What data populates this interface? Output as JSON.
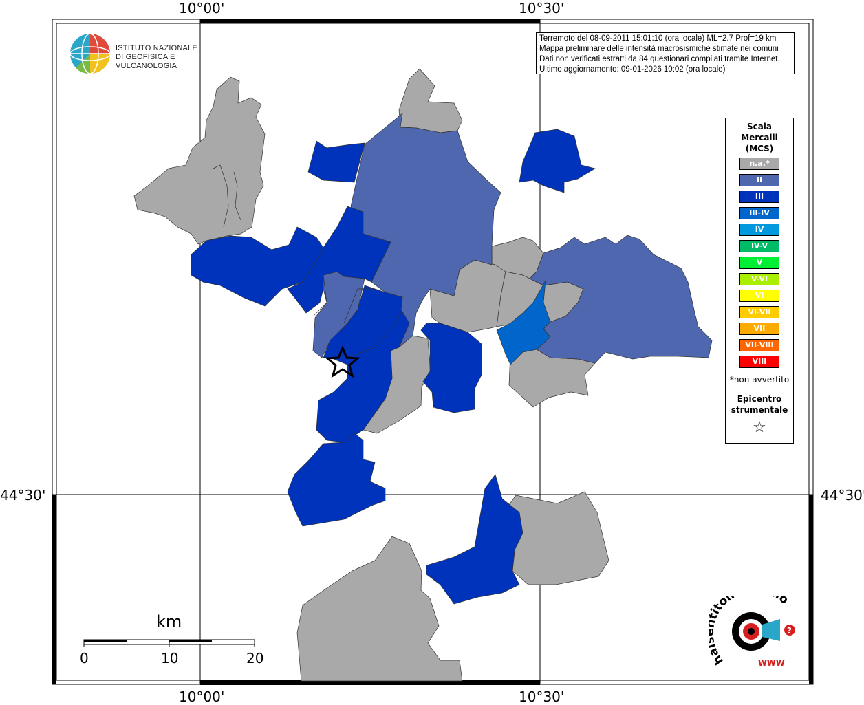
{
  "coords": {
    "lon_left": "10°00'",
    "lon_right": "10°30'",
    "lat": "44°30'"
  },
  "info": {
    "lines": [
      "Terremoto del 08-09-2011 15:01:10 (ora locale) ML=2.7 Prof=19 km",
      "Mappa preliminare delle intensità macrosismiche stimate nei comuni",
      "Dati non verificati estratti da 84 questionari compilati tramite Internet.",
      "Ultimo aggiornamento: 09-01-2026 10:02 (ora locale)"
    ]
  },
  "logo_ingv": {
    "line1": "ISTITUTO NAZIONALE",
    "line2": "DI GEOFISICA E VULCANOLOGIA"
  },
  "legend": {
    "title": [
      "Scala",
      "Mercalli",
      "(MCS)"
    ],
    "items": [
      {
        "label": "n.a.*",
        "color": "#a9a9a9"
      },
      {
        "label": "II",
        "color": "#4f67ae"
      },
      {
        "label": "III",
        "color": "#0033bb"
      },
      {
        "label": "III-IV",
        "color": "#0066cc"
      },
      {
        "label": "IV",
        "color": "#0099dd"
      },
      {
        "label": "IV-V",
        "color": "#00bb66"
      },
      {
        "label": "V",
        "color": "#00ee33"
      },
      {
        "label": "V-VI",
        "color": "#aaee00"
      },
      {
        "label": "VI",
        "color": "#ffff00"
      },
      {
        "label": "VI-VII",
        "color": "#ffcc00"
      },
      {
        "label": "VII",
        "color": "#ffaa00"
      },
      {
        "label": "VII-VIII",
        "color": "#ff6600"
      },
      {
        "label": "VIII",
        "color": "#ff0000"
      }
    ],
    "note": "*non avvertito",
    "epicenter_title": [
      "Epicentro",
      "strumentale"
    ]
  },
  "scalebar": {
    "unit": "km",
    "ticks": [
      "0",
      "10",
      "20"
    ]
  },
  "hsit_logo": {
    "text": "haisentitoilterremoto.it",
    "www": "www"
  },
  "colors": {
    "na": "#a9a9a9",
    "ii": "#4f67ae",
    "iii": "#0033bb",
    "iii_iv": "#0066cc"
  }
}
